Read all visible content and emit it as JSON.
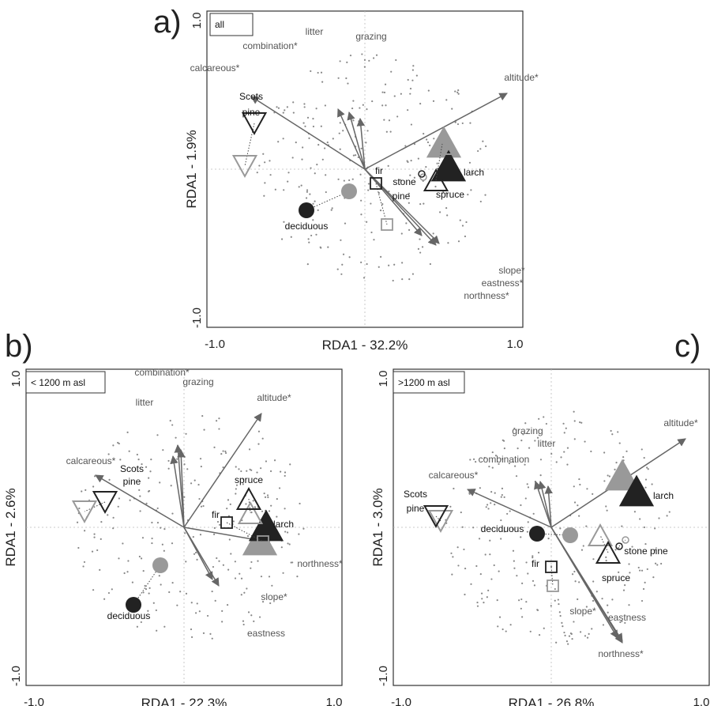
{
  "panels": [
    {
      "letter": "a)"
    },
    {
      "letter": "b)"
    },
    {
      "letter": "c)"
    }
  ],
  "chart_data": [
    {
      "type": "scatter",
      "panel": "a)",
      "subset_label": "all",
      "xlabel": "RDA1 - 32.2%",
      "ylabel": "RDA1 - 1.9%",
      "xlim": [
        -1.0,
        1.0
      ],
      "ylim": [
        -1.0,
        1.0
      ],
      "xticks": [
        "-1.0",
        "1.0"
      ],
      "yticks": [
        "1.0",
        "-1.0"
      ],
      "env_arrows": [
        {
          "label": "altitude*",
          "x": 0.9,
          "y": 0.48
        },
        {
          "label": "calcareous*",
          "x": -0.72,
          "y": 0.46
        },
        {
          "label": "combination*",
          "x": -0.17,
          "y": 0.38
        },
        {
          "label": "litter",
          "x": -0.1,
          "y": 0.36
        },
        {
          "label": "grazing",
          "x": -0.03,
          "y": 0.32
        },
        {
          "label": "slope*",
          "x": 0.47,
          "y": -0.47
        },
        {
          "label": "eastness*",
          "x": 0.45,
          "y": -0.48
        },
        {
          "label": "northness*",
          "x": 0.36,
          "y": -0.42
        }
      ],
      "env_label_positions": [
        {
          "label": "altitude*",
          "x": 0.99,
          "y": 0.56
        },
        {
          "label": "calcareous*",
          "x": -0.95,
          "y": 0.62
        },
        {
          "label": "combination*",
          "x": -0.6,
          "y": 0.76
        },
        {
          "label": "litter",
          "x": -0.32,
          "y": 0.85
        },
        {
          "label": "grazing",
          "x": 0.04,
          "y": 0.82
        },
        {
          "label": "slope*",
          "x": 0.93,
          "y": -0.66
        },
        {
          "label": "eastness*",
          "x": 0.87,
          "y": -0.74
        },
        {
          "label": "northness*",
          "x": 0.77,
          "y": -0.82
        }
      ],
      "species": [
        {
          "label": "Scots pine",
          "shape": "triangle-down",
          "x": -0.7,
          "y": 0.29,
          "x2": -0.76,
          "y2": 0.02
        },
        {
          "label": "larch",
          "shape": "triangle-up-filled",
          "x": 0.53,
          "y": 0.02,
          "x2": 0.5,
          "y2": 0.17
        },
        {
          "label": "spruce",
          "shape": "triangle-up",
          "x": 0.45,
          "y": -0.07,
          "x2": 0.49,
          "y2": 0.16
        },
        {
          "label": "fir",
          "shape": "square",
          "x": 0.07,
          "y": -0.09,
          "x2": 0.14,
          "y2": -0.35
        },
        {
          "label": "stone pine",
          "shape": "circle-open",
          "x": 0.36,
          "y": -0.03,
          "x2": 0.37,
          "y2": -0.05
        },
        {
          "label": "deciduous",
          "shape": "circle-filled",
          "x": -0.37,
          "y": -0.26,
          "x2": -0.1,
          "y2": -0.14
        }
      ],
      "species_label_positions": [
        {
          "label": "Scots",
          "x": -0.72,
          "y": 0.44
        },
        {
          "label": "pine",
          "x": -0.72,
          "y": 0.34
        },
        {
          "label": "larch",
          "x": 0.69,
          "y": -0.04
        },
        {
          "label": "spruce",
          "x": 0.54,
          "y": -0.18
        },
        {
          "label": "fir",
          "x": 0.09,
          "y": -0.03
        },
        {
          "label": "stone",
          "x": 0.25,
          "y": -0.1
        },
        {
          "label": "pine",
          "x": 0.23,
          "y": -0.19
        },
        {
          "label": "deciduous",
          "x": -0.37,
          "y": -0.38
        }
      ]
    },
    {
      "type": "scatter",
      "panel": "b)",
      "subset_label": "< 1200 m asl",
      "xlabel": "RDA1 - 22.3%",
      "ylabel": "RDA1 - 2.6%",
      "xlim": [
        -1.0,
        1.0
      ],
      "ylim": [
        -1.0,
        1.0
      ],
      "xticks": [
        "-1.0",
        "1.0"
      ],
      "yticks": [
        "1.0",
        "-1.0"
      ],
      "env_arrows": [
        {
          "label": "altitude*",
          "x": 0.49,
          "y": 0.72
        },
        {
          "label": "calcareous*",
          "x": -0.56,
          "y": 0.33
        },
        {
          "label": "combination*",
          "x": -0.04,
          "y": 0.52
        },
        {
          "label": "litter",
          "x": -0.07,
          "y": 0.45
        },
        {
          "label": "grazing",
          "x": -0.02,
          "y": 0.49
        },
        {
          "label": "northness*",
          "x": 0.52,
          "y": -0.09
        },
        {
          "label": "slope*",
          "x": 0.22,
          "y": -0.37
        },
        {
          "label": "eastness",
          "x": 0.18,
          "y": -0.33
        }
      ],
      "env_label_positions": [
        {
          "label": "altitude*",
          "x": 0.57,
          "y": 0.8
        },
        {
          "label": "calcareous*",
          "x": -0.59,
          "y": 0.4
        },
        {
          "label": "combination*",
          "x": -0.14,
          "y": 0.96
        },
        {
          "label": "litter",
          "x": -0.25,
          "y": 0.77
        },
        {
          "label": "grazing",
          "x": 0.09,
          "y": 0.9
        },
        {
          "label": "northness*",
          "x": 0.86,
          "y": -0.25
        },
        {
          "label": "slope*",
          "x": 0.57,
          "y": -0.46
        },
        {
          "label": "eastness",
          "x": 0.52,
          "y": -0.69
        }
      ],
      "species": [
        {
          "label": "Scots pine",
          "shape": "triangle-down",
          "x": -0.5,
          "y": 0.16,
          "x2": -0.63,
          "y2": 0.1
        },
        {
          "label": "larch",
          "shape": "triangle-up-filled",
          "x": 0.52,
          "y": 0.01,
          "x2": 0.48,
          "y2": -0.08
        },
        {
          "label": "spruce",
          "shape": "triangle-up",
          "x": 0.41,
          "y": 0.18,
          "x2": 0.42,
          "y2": 0.09
        },
        {
          "label": "fir",
          "shape": "square",
          "x": 0.27,
          "y": 0.03,
          "x2": 0.5,
          "y2": -0.09
        },
        {
          "label": "deciduous",
          "shape": "circle-filled",
          "x": -0.32,
          "y": -0.49,
          "x2": -0.15,
          "y2": -0.24
        }
      ],
      "species_label_positions": [
        {
          "label": "Scots",
          "x": -0.33,
          "y": 0.35
        },
        {
          "label": "pine",
          "x": -0.33,
          "y": 0.27
        },
        {
          "label": "larch",
          "x": 0.63,
          "y": 0.0
        },
        {
          "label": "spruce",
          "x": 0.41,
          "y": 0.28
        },
        {
          "label": "fir",
          "x": 0.2,
          "y": 0.06
        },
        {
          "label": "deciduous",
          "x": -0.35,
          "y": -0.58
        }
      ]
    },
    {
      "type": "scatter",
      "panel": "c)",
      "subset_label": ">1200 m asl",
      "xlabel": "RDA1 - 26.8%",
      "ylabel": "RDA1 - 3.0%",
      "xlim": [
        -1.0,
        1.0
      ],
      "ylim": [
        -1.0,
        1.0
      ],
      "xticks": [
        "-1.0",
        "1.0"
      ],
      "yticks": [
        "1.0",
        "-1.0"
      ],
      "env_arrows": [
        {
          "label": "altitude*",
          "x": 0.85,
          "y": 0.56
        },
        {
          "label": "calcareous*",
          "x": -0.53,
          "y": 0.24
        },
        {
          "label": "combination",
          "x": -0.1,
          "y": 0.29
        },
        {
          "label": "grazing",
          "x": -0.02,
          "y": 0.26
        },
        {
          "label": "litter",
          "x": -0.07,
          "y": 0.29
        },
        {
          "label": "northness*",
          "x": 0.45,
          "y": -0.73
        },
        {
          "label": "slope*",
          "x": 0.45,
          "y": -0.72
        },
        {
          "label": "eastness",
          "x": 0.42,
          "y": -0.7
        }
      ],
      "env_label_positions": [
        {
          "label": "altitude*",
          "x": 0.82,
          "y": 0.64
        },
        {
          "label": "calcareous*",
          "x": -0.62,
          "y": 0.31
        },
        {
          "label": "combination",
          "x": -0.3,
          "y": 0.41
        },
        {
          "label": "grazing",
          "x": -0.15,
          "y": 0.59
        },
        {
          "label": "litter",
          "x": -0.03,
          "y": 0.51
        },
        {
          "label": "northness*",
          "x": 0.44,
          "y": -0.82
        },
        {
          "label": "slope*",
          "x": 0.2,
          "y": -0.55
        },
        {
          "label": "eastness",
          "x": 0.48,
          "y": -0.59
        }
      ],
      "species": [
        {
          "label": "Scots pine",
          "shape": "triangle-down",
          "x": -0.73,
          "y": 0.07,
          "x2": -0.7,
          "y2": 0.04
        },
        {
          "label": "larch",
          "shape": "triangle-up-filled",
          "x": 0.54,
          "y": 0.23,
          "x2": 0.45,
          "y2": 0.33
        },
        {
          "label": "spruce",
          "shape": "triangle-up",
          "x": 0.36,
          "y": -0.16,
          "x2": 0.31,
          "y2": -0.05
        },
        {
          "label": "fir",
          "shape": "square",
          "x": 0.0,
          "y": -0.25,
          "x2": 0.01,
          "y2": -0.37
        },
        {
          "label": "stone pine",
          "shape": "circle-open",
          "x": 0.43,
          "y": -0.12,
          "x2": 0.47,
          "y2": -0.08
        },
        {
          "label": "deciduous",
          "shape": "circle-filled",
          "x": -0.09,
          "y": -0.04,
          "x2": 0.12,
          "y2": -0.05
        }
      ],
      "species_label_positions": [
        {
          "label": "Scots",
          "x": -0.86,
          "y": 0.19
        },
        {
          "label": "pine",
          "x": -0.86,
          "y": 0.1
        },
        {
          "label": "larch",
          "x": 0.71,
          "y": 0.18
        },
        {
          "label": "spruce",
          "x": 0.41,
          "y": -0.34
        },
        {
          "label": "fir",
          "x": -0.1,
          "y": -0.25
        },
        {
          "label": "stone pine",
          "x": 0.6,
          "y": -0.17
        },
        {
          "label": "deciduous",
          "x": -0.31,
          "y": -0.03
        }
      ]
    }
  ]
}
